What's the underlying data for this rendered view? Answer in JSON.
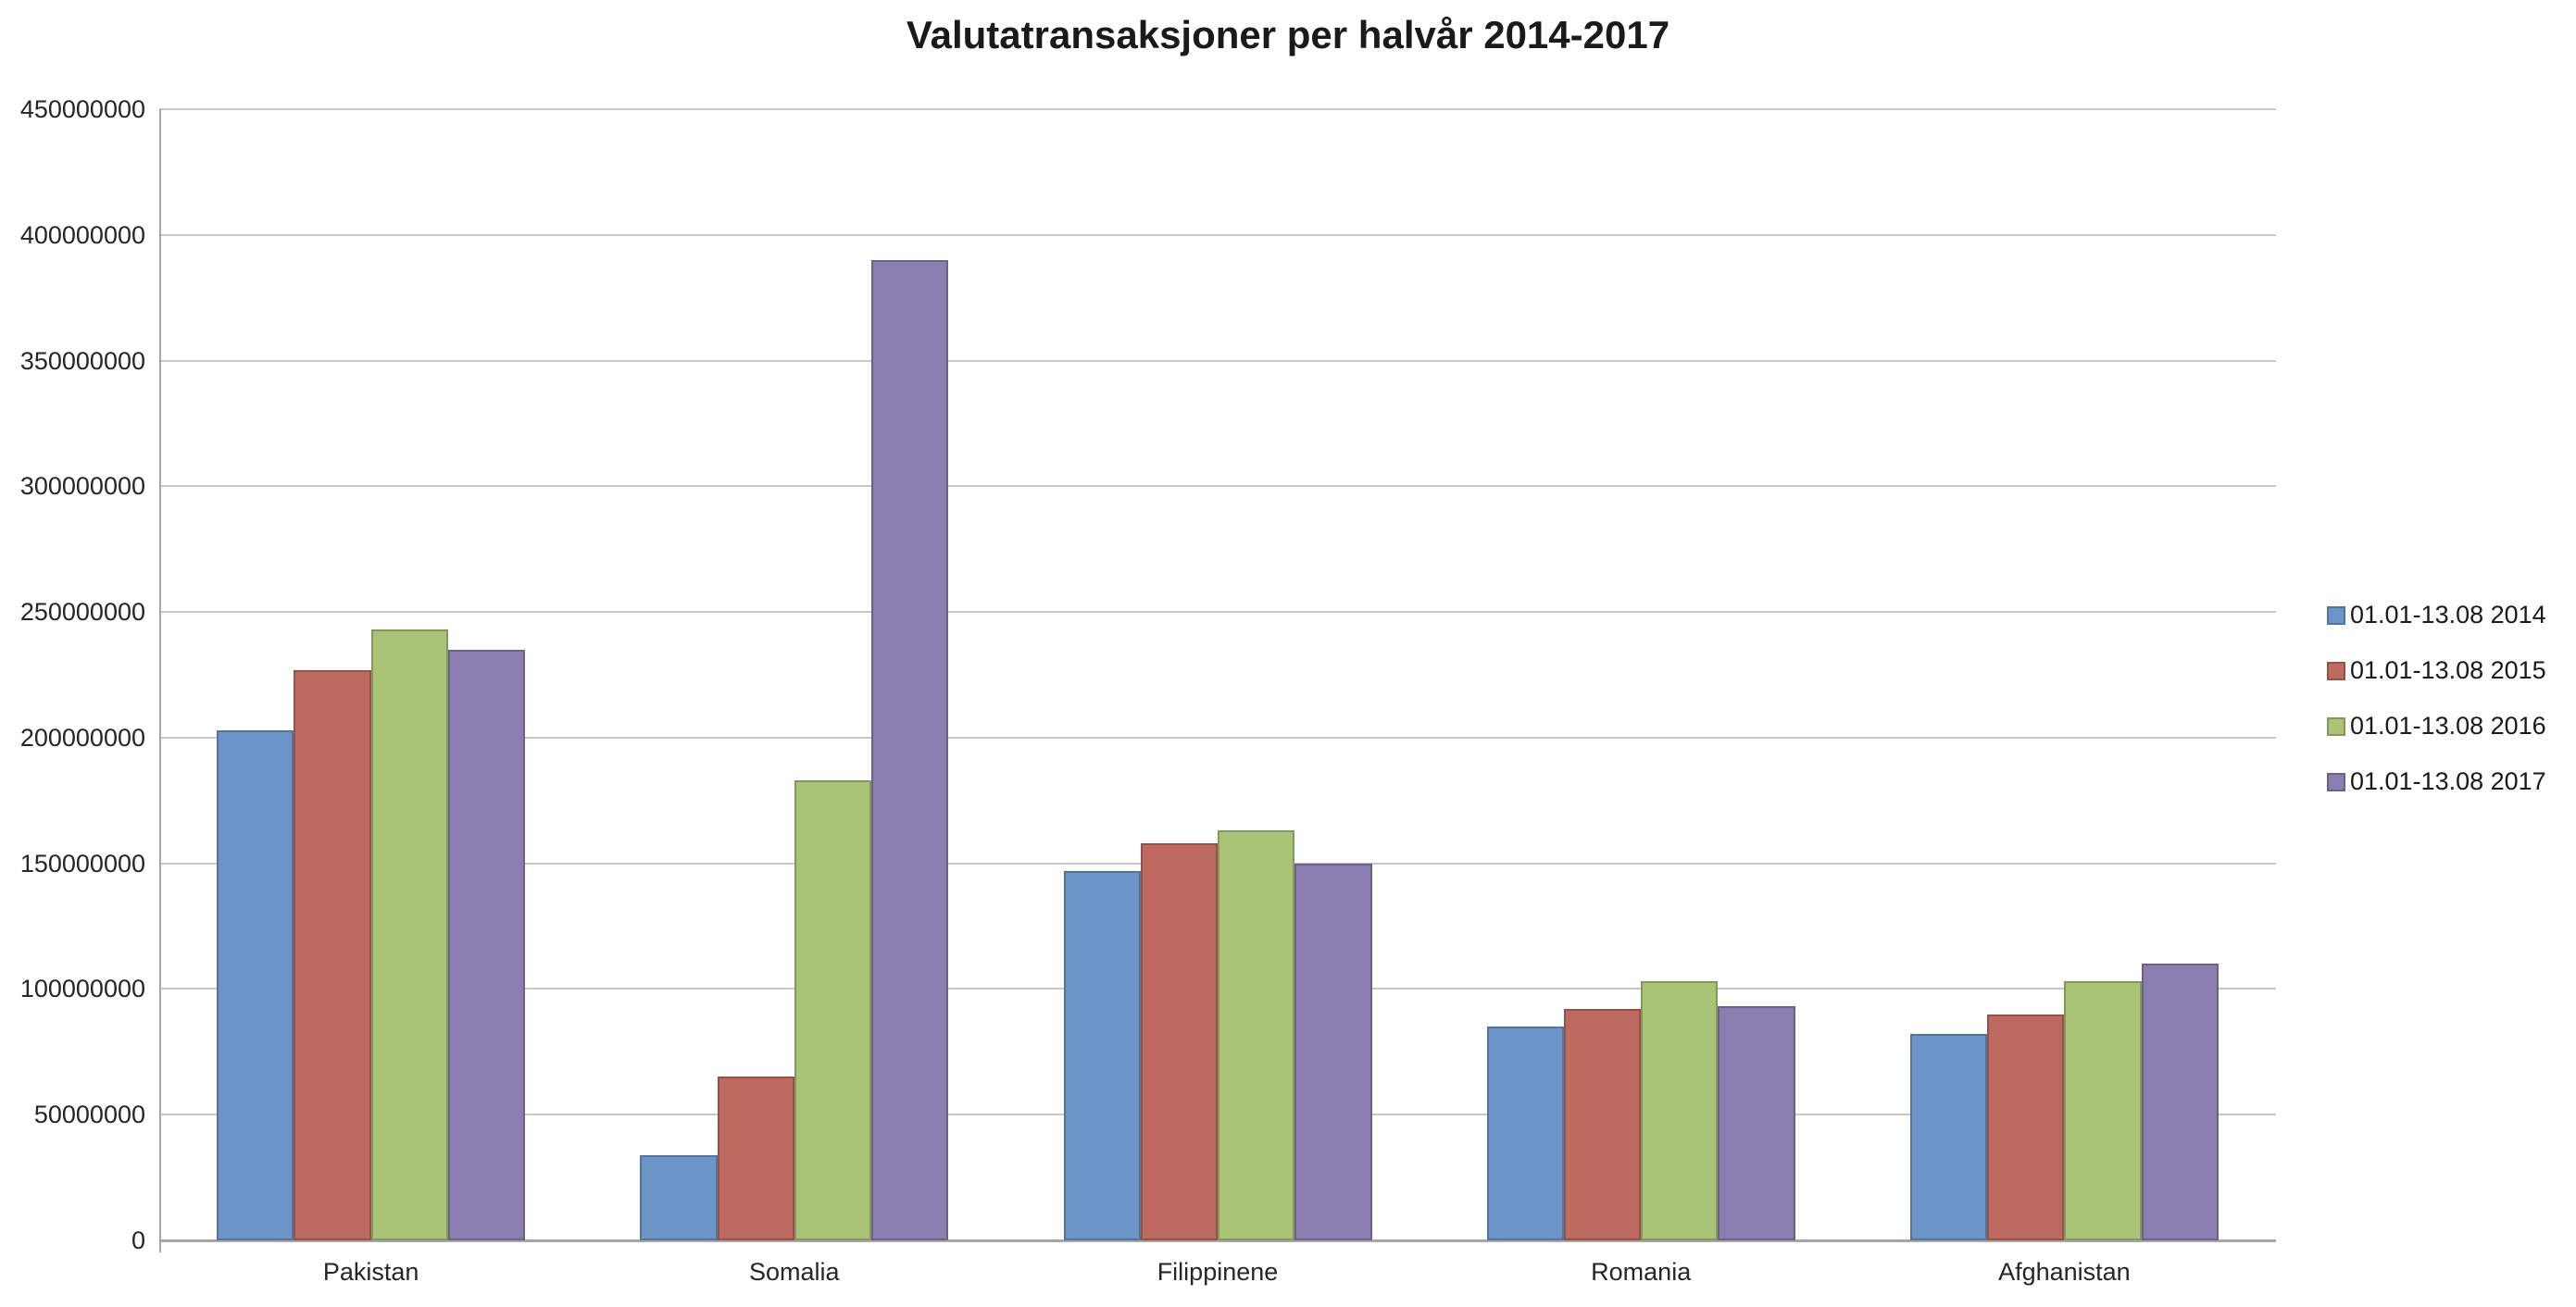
{
  "title": "Valutatransaksjoner per halvår 2014-2017",
  "colors": {
    "background": "#ffffff",
    "gridline": "#c7c7c7",
    "axis": "#a6a6a6",
    "text": "#262626",
    "title_text": "#1a1a1a"
  },
  "chart_data": {
    "type": "bar",
    "title": "Valutatransaksjoner per halvår 2014-2017",
    "xlabel": "",
    "ylabel": "",
    "ylim": [
      0,
      450000000
    ],
    "ytick_step": 50000000,
    "ytick_labels": [
      "0",
      "50000000",
      "100000000",
      "150000000",
      "200000000",
      "250000000",
      "300000000",
      "350000000",
      "400000000",
      "450000000"
    ],
    "grid": true,
    "legend_position": "right",
    "categories": [
      "Pakistan",
      "Somalia",
      "Filippinene",
      "Romania",
      "Afghanistan"
    ],
    "series": [
      {
        "name": "01.01-13.08 2014",
        "color": "#6d94c6",
        "border_color": "#54749c",
        "values": [
          203000000,
          34000000,
          147000000,
          85000000,
          82000000
        ]
      },
      {
        "name": "01.01-13.08 2015",
        "color": "#bf6a61",
        "border_color": "#94524b",
        "values": [
          227000000,
          65000000,
          158000000,
          92000000,
          90000000
        ]
      },
      {
        "name": "01.01-13.08 2016",
        "color": "#a9c377",
        "border_color": "#83985c",
        "values": [
          243000000,
          183000000,
          163000000,
          103000000,
          103000000
        ]
      },
      {
        "name": "01.01-13.08 2017",
        "color": "#8c7db0",
        "border_color": "#6d6189",
        "values": [
          235000000,
          390000000,
          150000000,
          93000000,
          110000000
        ]
      }
    ]
  }
}
